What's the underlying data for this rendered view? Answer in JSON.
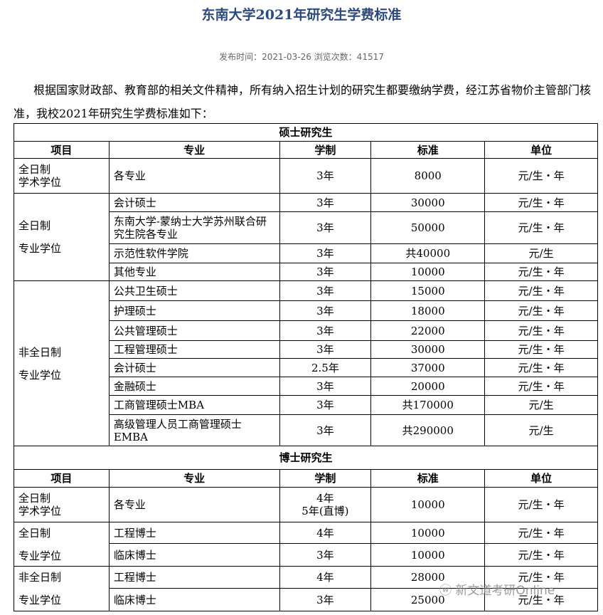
{
  "title": "东南大学2021年研究生学费标准",
  "meta": "发布时间：2021-03-26 浏览次数：41517",
  "intro": "根据国家财政部、教育部的相关文件精神，所有纳入招生计划的研究生都要缴纳学费，经江苏省物价主管部门核准，我校2021年研究生学费标准如下：",
  "headers": [
    "项目",
    "专业",
    "学制",
    "标准",
    "单位"
  ],
  "sections": [
    {
      "title": "硕士研究生",
      "groups": [
        {
          "category": [
            "全日制",
            "学术学位"
          ],
          "rows": [
            [
              "各专业",
              "3年",
              "8000",
              "元/生・年"
            ]
          ]
        },
        {
          "category": [
            "全日制",
            "专业学位"
          ],
          "rows": [
            [
              "会计硕士",
              "3年",
              "30000",
              "元/生・年"
            ],
            [
              "东南大学-蒙纳士大学苏州联合研究生院各专业",
              "3年",
              "50000",
              "元/生・年"
            ],
            [
              "示范性软件学院",
              "3年",
              "共40000",
              "元/生"
            ],
            [
              "其他专业",
              "3年",
              "10000",
              "元/生・年"
            ]
          ]
        },
        {
          "category": [
            "非全日制",
            "专业学位"
          ],
          "rows": [
            [
              "公共卫生硕士",
              "3年",
              "15000",
              "元/生・年"
            ],
            [
              "护理硕士",
              "3年",
              "18000",
              "元/生・年"
            ],
            [
              "公共管理硕士",
              "3年",
              "22000",
              "元/生・年"
            ],
            [
              "工程管理硕士",
              "3年",
              "30000",
              "元/生・年"
            ],
            [
              "会计硕士",
              "2.5年",
              "37000",
              "元/生・年"
            ],
            [
              "金融硕士",
              "3年",
              "20000",
              "元/生・年"
            ],
            [
              "工商管理硕士MBA",
              "3年",
              "共170000",
              "元/生"
            ],
            [
              "高级管理人员工商管理硕士EMBA",
              "3年",
              "共290000",
              "元/生"
            ]
          ]
        }
      ]
    },
    {
      "title": "博士研究生",
      "groups": [
        {
          "category": [
            "全日制",
            "学术学位"
          ],
          "rows": [
            [
              "各专业",
              "4年\n5年(直博)",
              "10000",
              "元/生・年"
            ]
          ]
        },
        {
          "category": [
            "全日制",
            "专业学位"
          ],
          "rows": [
            [
              "工程博士",
              "4年",
              "10000",
              "元/生・年"
            ],
            [
              "临床博士",
              "3年",
              "10000",
              "元/生・年"
            ]
          ]
        },
        {
          "category": [
            "非全日制",
            "专业学位"
          ],
          "rows": [
            [
              "工程博士",
              "4年",
              "28000",
              "元/生・年"
            ],
            [
              "临床博士",
              "3年",
              "25000",
              "元/生・年"
            ]
          ]
        }
      ]
    }
  ],
  "watermark": "新文道考研Online"
}
